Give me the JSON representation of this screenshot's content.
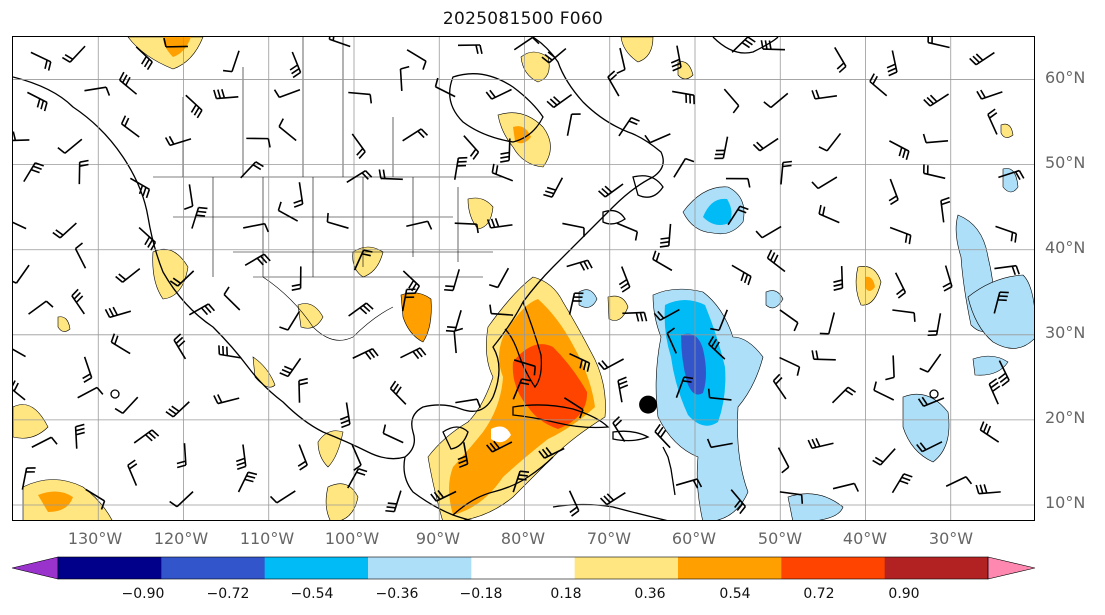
{
  "title": "2025081500 F060",
  "map": {
    "longitude_labels": [
      "130°W",
      "120°W",
      "110°W",
      "100°W",
      "90°W",
      "80°W",
      "70°W",
      "60°W",
      "50°W",
      "40°W",
      "30°W"
    ],
    "latitude_labels": [
      "60°N",
      "50°N",
      "40°N",
      "30°N",
      "20°N",
      "10°N"
    ],
    "extent": {
      "lon_min": -140,
      "lon_max": -20,
      "lat_min": 8,
      "lat_max": 65
    },
    "storm_marker": {
      "lon": -65.5,
      "lat": 21.8
    },
    "grid": true,
    "barbs": true
  },
  "colorbar": {
    "tick_labels": [
      "−0.90",
      "−0.72",
      "−0.54",
      "−0.36",
      "−0.18",
      "0.18",
      "0.36",
      "0.54",
      "0.72",
      "0.90"
    ],
    "levels": [
      -0.9,
      -0.72,
      -0.54,
      -0.36,
      -0.18,
      0.18,
      0.36,
      0.54,
      0.72,
      0.9
    ],
    "colors": [
      "#9933cc",
      "#00008b",
      "#3355cc",
      "#00bbf5",
      "#aedff8",
      "#ffffff",
      "#ffe680",
      "#ffa000",
      "#ff4400",
      "#b22222",
      "#ff88b0"
    ],
    "extend": "both"
  },
  "colors": {
    "pos_light": "#ffe680",
    "pos_mid": "#ffa000",
    "pos_strong": "#ff4400",
    "neg_light": "#aedff8",
    "neg_mid": "#00bbf5",
    "neg_strong": "#3355cc",
    "grid": "#999999"
  }
}
